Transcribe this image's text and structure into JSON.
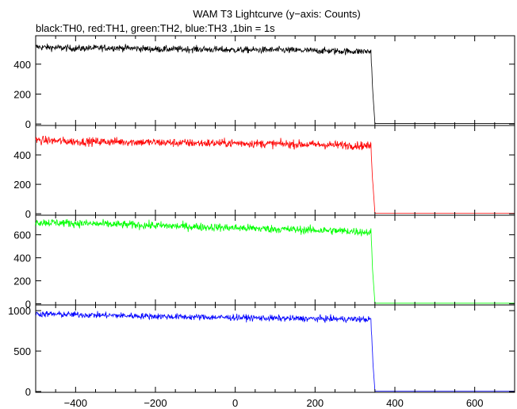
{
  "header": {
    "title": "WAM T3 Lightcurve (y−axis: Counts)",
    "subtitle": "black:TH0, red:TH1, green:TH2, blue:TH3 ,1bin = 1s"
  },
  "chart_data": {
    "type": "line",
    "shared_x_axis": {
      "range": [
        -500,
        700
      ],
      "ticks": [
        -400,
        -200,
        0,
        200,
        400,
        600
      ],
      "tick_labels": [
        "−400",
        "−200",
        "0",
        "200",
        "400",
        "600"
      ]
    },
    "x": [
      -500,
      -400,
      -300,
      -200,
      -100,
      0,
      100,
      200,
      300,
      340,
      345,
      350,
      400,
      500,
      600,
      700
    ],
    "panels": [
      {
        "series": "TH0",
        "color": "#000000",
        "ylim": [
          -10,
          590
        ],
        "yticks": [
          0,
          200,
          400
        ],
        "values": [
          515,
          505,
          510,
          500,
          500,
          495,
          495,
          490,
          485,
          485,
          200,
          3,
          3,
          3,
          3,
          3
        ],
        "noise_amplitude": 22
      },
      {
        "series": "TH1",
        "color": "#ff0000",
        "ylim": [
          -10,
          600
        ],
        "yticks": [
          0,
          200,
          400
        ],
        "values": [
          500,
          490,
          490,
          485,
          480,
          480,
          475,
          470,
          465,
          460,
          200,
          3,
          3,
          3,
          3,
          3
        ],
        "noise_amplitude": 28
      },
      {
        "series": "TH2",
        "color": "#00ff00",
        "ylim": [
          -10,
          770
        ],
        "yticks": [
          0,
          200,
          400,
          600
        ],
        "values": [
          710,
          700,
          690,
          680,
          670,
          660,
          650,
          640,
          630,
          620,
          250,
          5,
          5,
          5,
          5,
          5
        ],
        "noise_amplitude": 35
      },
      {
        "series": "TH3",
        "color": "#0000ff",
        "ylim": [
          -10,
          1070
        ],
        "yticks": [
          0,
          500,
          1000
        ],
        "values": [
          960,
          950,
          940,
          930,
          920,
          915,
          905,
          900,
          895,
          890,
          350,
          5,
          5,
          5,
          5,
          5
        ],
        "noise_amplitude": 38
      }
    ]
  }
}
